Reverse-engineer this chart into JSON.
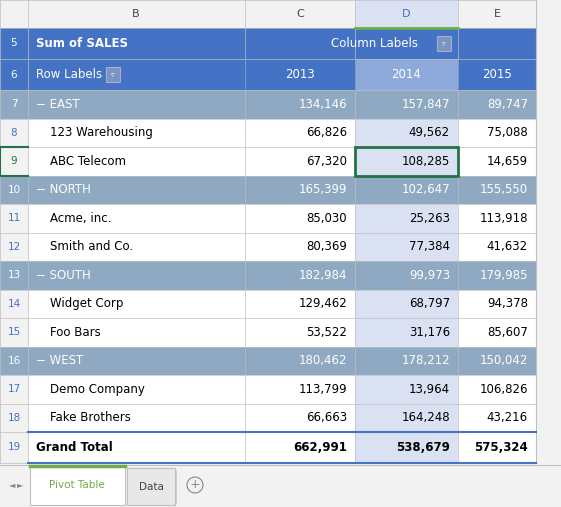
{
  "fig_width": 5.61,
  "fig_height": 5.07,
  "dpi": 100,
  "col_header_bg": "#4472C4",
  "col_header_text": "#FFFFFF",
  "group_row_bg": "#8EA9C1",
  "detail_bg": "#FFFFFF",
  "detail_text": "#000000",
  "selected_col_bg": "#D9E1F2",
  "selected_col_header_bg": "#8EAADB",
  "grand_bg": "#FFFFFF",
  "row_num_bg": "#F2F2F2",
  "row_num_text_blue": "#4472C4",
  "row_num_text_white": "#FFFFFF",
  "tab_active_text": "#70AD47",
  "tab_active_border": "#70AD47",
  "col_header_row": {
    "row_num": "5",
    "col_b": "Sum of SALES",
    "col_c": "Column Labels"
  },
  "subheader_row": {
    "row_num": "6",
    "col_b": "Row Labels",
    "col_c": "2013",
    "col_d": "2014",
    "col_e": "2015"
  },
  "data_rows": [
    {
      "row_num": "7",
      "label": "− EAST",
      "is_group": true,
      "c": "134,146",
      "d": "157,847",
      "e": "89,747"
    },
    {
      "row_num": "8",
      "label": "123 Warehousing",
      "is_group": false,
      "c": "66,826",
      "d": "49,562",
      "e": "75,088"
    },
    {
      "row_num": "9",
      "label": "ABC Telecom",
      "is_group": false,
      "c": "67,320",
      "d": "108,285",
      "e": "14,659"
    },
    {
      "row_num": "10",
      "label": "− NORTH",
      "is_group": true,
      "c": "165,399",
      "d": "102,647",
      "e": "155,550"
    },
    {
      "row_num": "11",
      "label": "Acme, inc.",
      "is_group": false,
      "c": "85,030",
      "d": "25,263",
      "e": "113,918"
    },
    {
      "row_num": "12",
      "label": "Smith and Co.",
      "is_group": false,
      "c": "80,369",
      "d": "77,384",
      "e": "41,632"
    },
    {
      "row_num": "13",
      "label": "− SOUTH",
      "is_group": true,
      "c": "182,984",
      "d": "99,973",
      "e": "179,985"
    },
    {
      "row_num": "14",
      "label": "Widget Corp",
      "is_group": false,
      "c": "129,462",
      "d": "68,797",
      "e": "94,378"
    },
    {
      "row_num": "15",
      "label": "Foo Bars",
      "is_group": false,
      "c": "53,522",
      "d": "31,176",
      "e": "85,607"
    },
    {
      "row_num": "16",
      "label": "− WEST",
      "is_group": true,
      "c": "180,462",
      "d": "178,212",
      "e": "150,042"
    },
    {
      "row_num": "17",
      "label": "Demo Company",
      "is_group": false,
      "c": "113,799",
      "d": "13,964",
      "e": "106,826"
    },
    {
      "row_num": "18",
      "label": "Fake Brothers",
      "is_group": false,
      "c": "66,663",
      "d": "164,248",
      "e": "43,216"
    }
  ],
  "grand_total": {
    "row_num": "19",
    "label": "Grand Total",
    "c": "662,991",
    "d": "538,679",
    "e": "575,324"
  },
  "selected_cell_row": 2,
  "tab_labels": [
    "Pivot Table",
    "Data"
  ]
}
